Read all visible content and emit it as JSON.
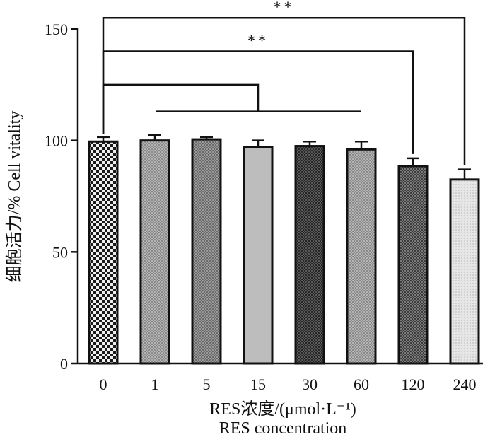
{
  "chart_data": {
    "type": "bar",
    "title": "",
    "categories": [
      "0",
      "1",
      "5",
      "15",
      "30",
      "60",
      "120",
      "240"
    ],
    "values": [
      99.5,
      100,
      100.5,
      97,
      97.5,
      96,
      88.5,
      82.5
    ],
    "errors": [
      2,
      2.5,
      1,
      3,
      2,
      3.5,
      3.5,
      4.5
    ],
    "ylim": [
      0,
      150
    ],
    "yticks": [
      0,
      50,
      100,
      150
    ],
    "ylabel": "细胞活力/% Cell vitality",
    "xlabel_line1": "RES浓度/(μmol·L⁻¹)",
    "xlabel_line2": "RES concentration",
    "grid": false,
    "bar_fills": [
      "#1c1c1c",
      "#a6a6a6",
      "#808080",
      "#bdbdbd",
      "#5c5c5c",
      "#8c8c8c",
      "#3d3d3d",
      "#e0e0e0"
    ],
    "significance": [
      {
        "label": "",
        "from": 0,
        "to_group": [
          1,
          5
        ]
      },
      {
        "label": "**",
        "from": 0,
        "to": 6
      },
      {
        "label": "**",
        "from": 0,
        "to": 7
      }
    ]
  }
}
